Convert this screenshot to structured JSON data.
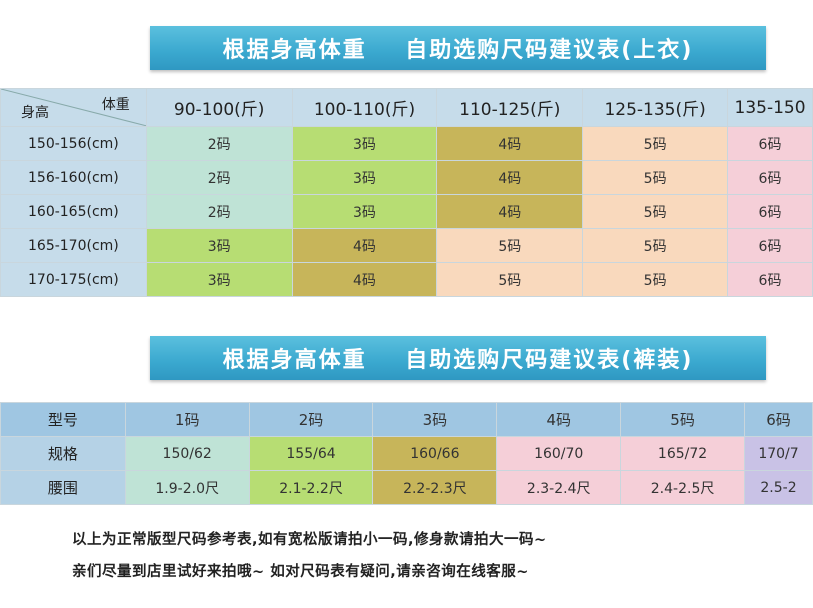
{
  "top_title": "根据身高体重    自助选购尺码建议表(上衣)",
  "pants_title": "根据身高体重    自助选购尺码建议表(裤装)",
  "top_table": {
    "corner_top": "体重",
    "corner_bottom": "身高",
    "weights": [
      "90-100(斤)",
      "100-110(斤)",
      "110-125(斤)",
      "125-135(斤)",
      "135-150"
    ],
    "rows": [
      {
        "height": "150-156(cm)",
        "sizes": [
          "2码",
          "3码",
          "4码",
          "5码",
          "6码"
        ]
      },
      {
        "height": "156-160(cm)",
        "sizes": [
          "2码",
          "3码",
          "4码",
          "5码",
          "6码"
        ]
      },
      {
        "height": "160-165(cm)",
        "sizes": [
          "2码",
          "3码",
          "4码",
          "5码",
          "6码"
        ]
      },
      {
        "height": "165-170(cm)",
        "sizes": [
          "3码",
          "4码",
          "5码",
          "5码",
          "6码"
        ]
      },
      {
        "height": "170-175(cm)",
        "sizes": [
          "3码",
          "4码",
          "5码",
          "5码",
          "6码"
        ]
      }
    ]
  },
  "pants_table": {
    "rows": [
      {
        "label": "型号",
        "values": [
          "1码",
          "2码",
          "3码",
          "4码",
          "5码",
          "6码"
        ]
      },
      {
        "label": "规格",
        "values": [
          "150/62",
          "155/64",
          "160/66",
          "160/70",
          "165/72",
          "170/7"
        ]
      },
      {
        "label": "腰围",
        "values": [
          "1.9-2.0尺",
          "2.1-2.2尺",
          "2.2-2.3尺",
          "2.3-2.4尺",
          "2.4-2.5尺",
          "2.5-2"
        ]
      }
    ]
  },
  "notes": [
    "以上为正常版型尺码参考表,如有宽松版请拍小一码,修身款请拍大一码~",
    "亲们尽量到店里试好来拍哦~ 如对尺码表有疑问,请亲咨询在线客服~"
  ]
}
